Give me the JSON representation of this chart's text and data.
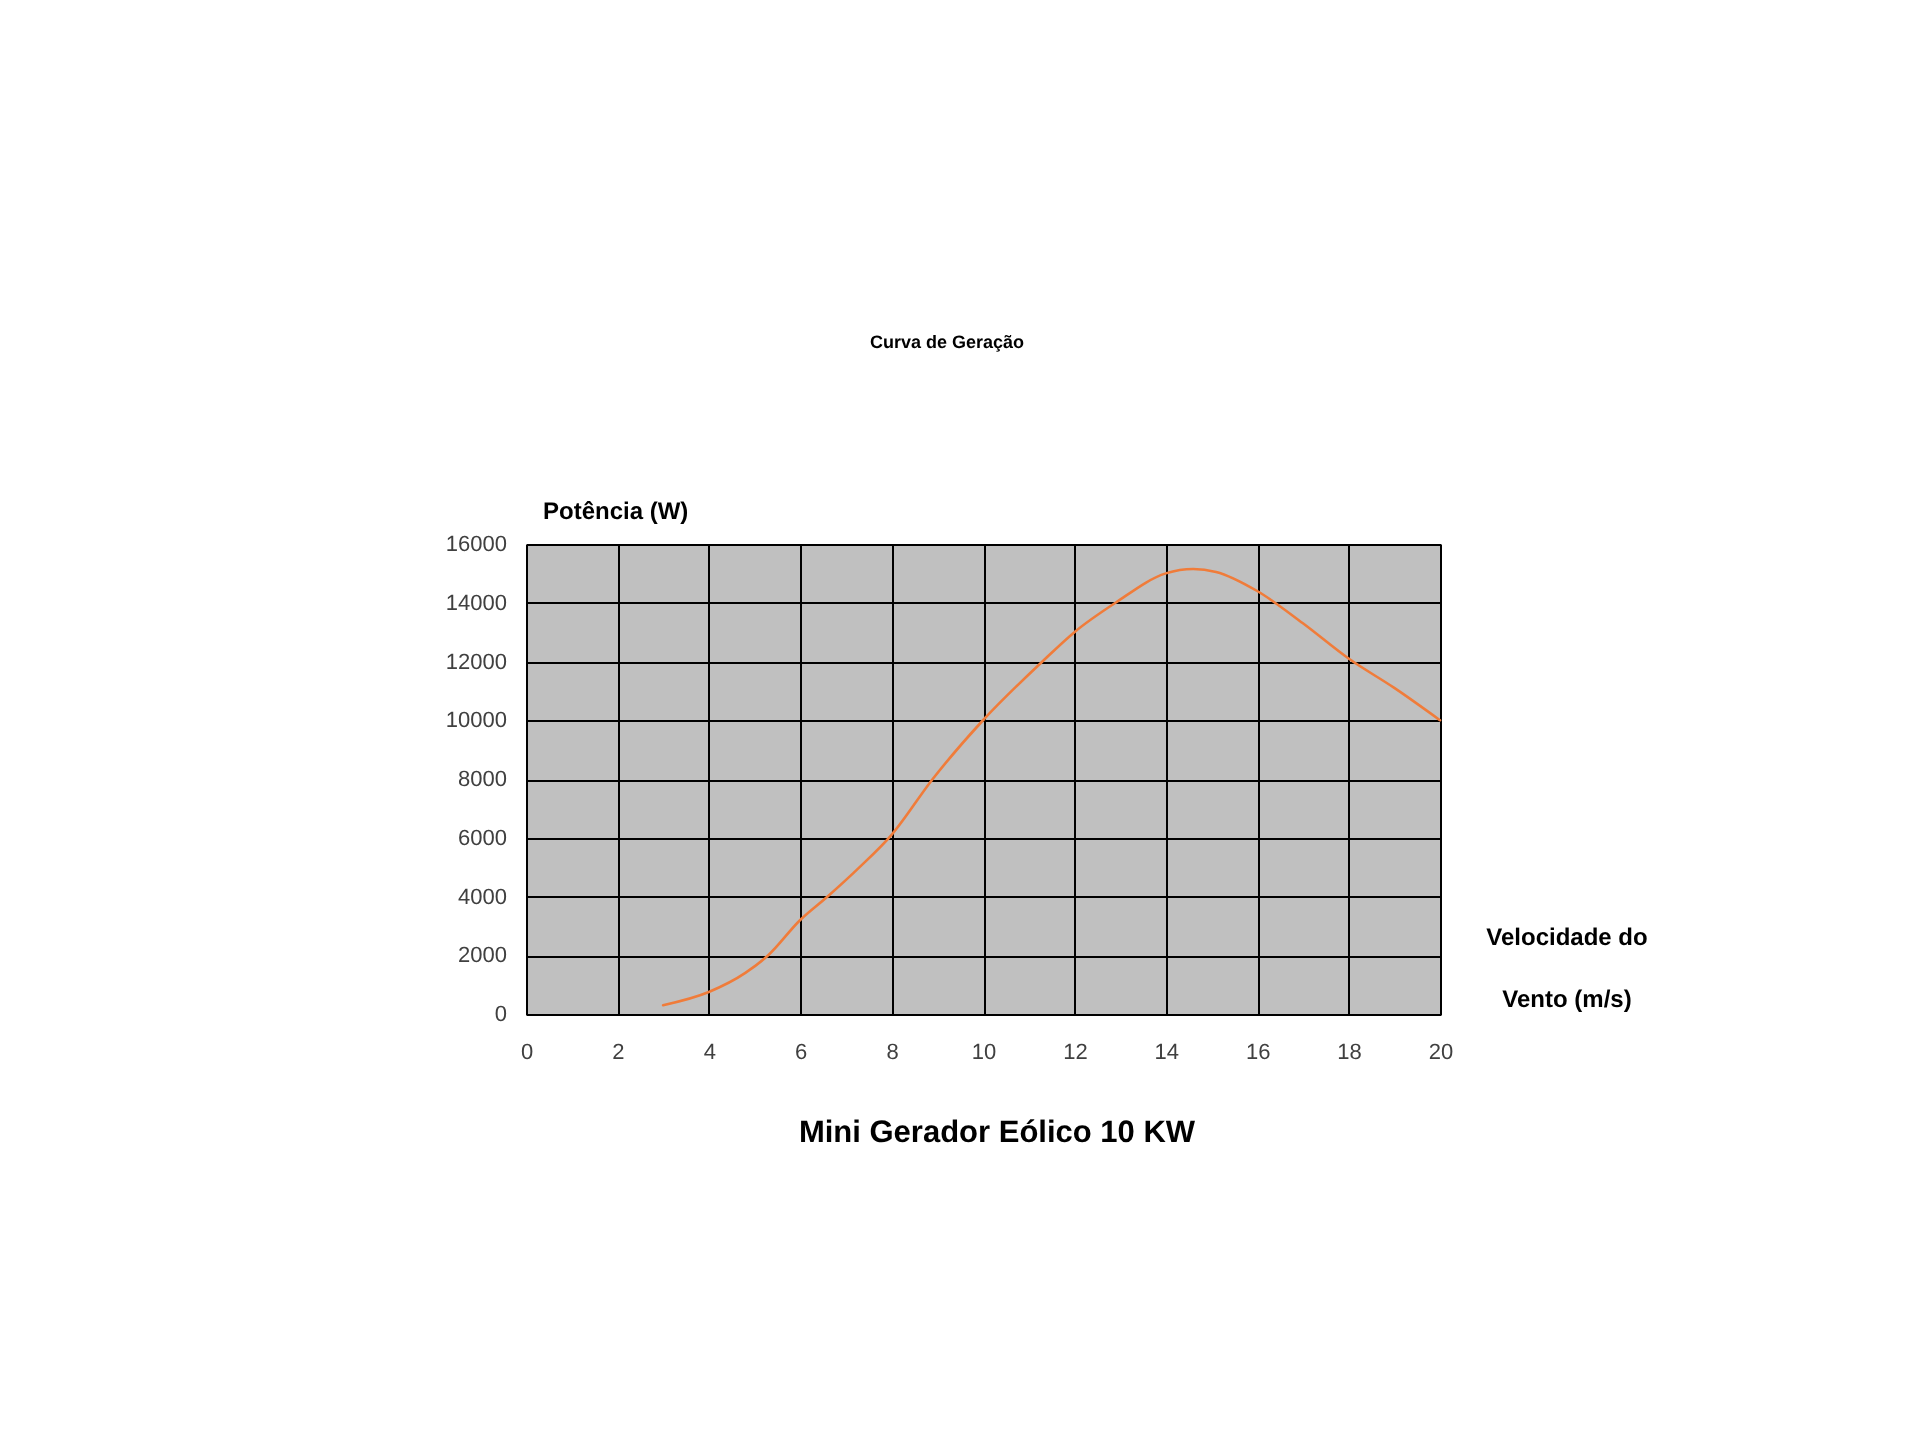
{
  "chart_data": {
    "type": "line",
    "title": "Curva de Geração",
    "xlabel": "Velocidade do\nVento (m/s)",
    "ylabel": "Potência (W)",
    "annotations": [
      "Mini Gerador Eólico 10 KW"
    ],
    "x": [
      3,
      4,
      4.8,
      5.3,
      6,
      6.6,
      7.3,
      8,
      8.9,
      10,
      11.3,
      12,
      12.9,
      14,
      14.6,
      15.1,
      16,
      17,
      18,
      19,
      20
    ],
    "series": [
      {
        "color": "#f07c3a",
        "values": [
          300,
          750,
          1400,
          2000,
          3200,
          4000,
          5000,
          6100,
          8000,
          10000,
          12000,
          13000,
          14000,
          15000,
          15150,
          15050,
          14400,
          13300,
          12100,
          11100,
          10000
        ]
      }
    ],
    "xlim": [
      0,
      20
    ],
    "xticks": [
      0,
      2,
      4,
      6,
      8,
      10,
      12,
      14,
      16,
      18,
      20
    ],
    "ylim": [
      0,
      16000
    ],
    "yticks": [
      0,
      2000,
      4000,
      6000,
      8000,
      10000,
      12000,
      14000,
      16000
    ],
    "grid": true,
    "marker": "none",
    "line_style": "solid"
  }
}
